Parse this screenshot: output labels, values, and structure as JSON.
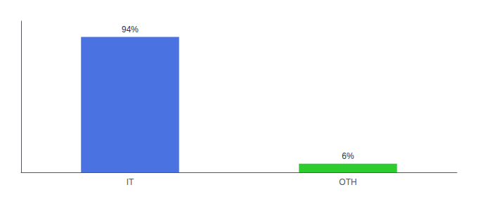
{
  "chart_data": {
    "type": "bar",
    "categories": [
      "IT",
      "OTH"
    ],
    "values": [
      94,
      6
    ],
    "value_labels": [
      "94%",
      "6%"
    ],
    "colors": [
      "#4a72e0",
      "#2ecc2e"
    ],
    "ylim": [
      0,
      105
    ],
    "grid": false,
    "data_labels": true,
    "tick_labels": "x"
  }
}
